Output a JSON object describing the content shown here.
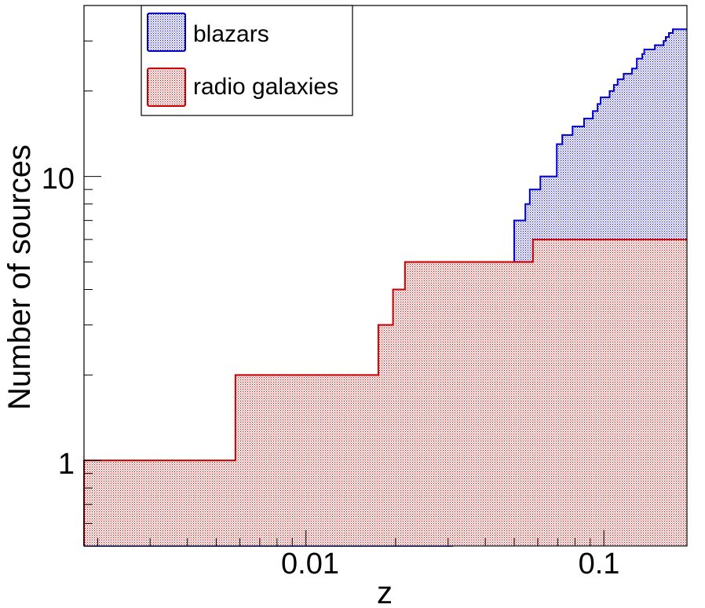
{
  "chart_data": {
    "type": "area",
    "title": "",
    "xlabel": "z",
    "ylabel": "Number of sources",
    "xscale": "log",
    "yscale": "log",
    "xlim": [
      0.0018,
      0.19
    ],
    "ylim": [
      0.5,
      40
    ],
    "xticks": [
      {
        "value": 0.01,
        "label": "0.01"
      },
      {
        "value": 0.1,
        "label": "0.1"
      }
    ],
    "yticks": [
      {
        "value": 1,
        "label": "1"
      },
      {
        "value": 10,
        "label": "10"
      }
    ],
    "legend_position": "top-left",
    "grid": false,
    "series": [
      {
        "name": "blazars",
        "color": "#0000cc",
        "style": "cumulative step histogram, hatched fill",
        "z_edges": [
          0.0018,
          0.031,
          0.0345,
          0.0382,
          0.0463,
          0.05,
          0.053,
          0.0545,
          0.0564,
          0.0612,
          0.0695,
          0.0725,
          0.0785,
          0.0858,
          0.0903,
          0.0918,
          0.0952,
          0.0975,
          0.1,
          0.1045,
          0.108,
          0.1112,
          0.1165,
          0.1242,
          0.129,
          0.1345,
          0.1366,
          0.1483,
          0.1538,
          0.1586,
          0.1613,
          0.1653,
          0.1703,
          0.19
        ],
        "counts": [
          0.5,
          1,
          2,
          2,
          4,
          7,
          7,
          8,
          9,
          10,
          13,
          14,
          15,
          16,
          16,
          17,
          18,
          19,
          19,
          20,
          21,
          22,
          23,
          24,
          26,
          27,
          28,
          29,
          29,
          30,
          31,
          32,
          33
        ]
      },
      {
        "name": "radio galaxies",
        "color": "#cc0000",
        "style": "cumulative step histogram, hatched fill",
        "z_edges": [
          0.0018,
          0.0058,
          0.0175,
          0.0196,
          0.0215,
          0.0578,
          0.19
        ],
        "counts": [
          1,
          2,
          3,
          4,
          5,
          6
        ]
      }
    ]
  }
}
